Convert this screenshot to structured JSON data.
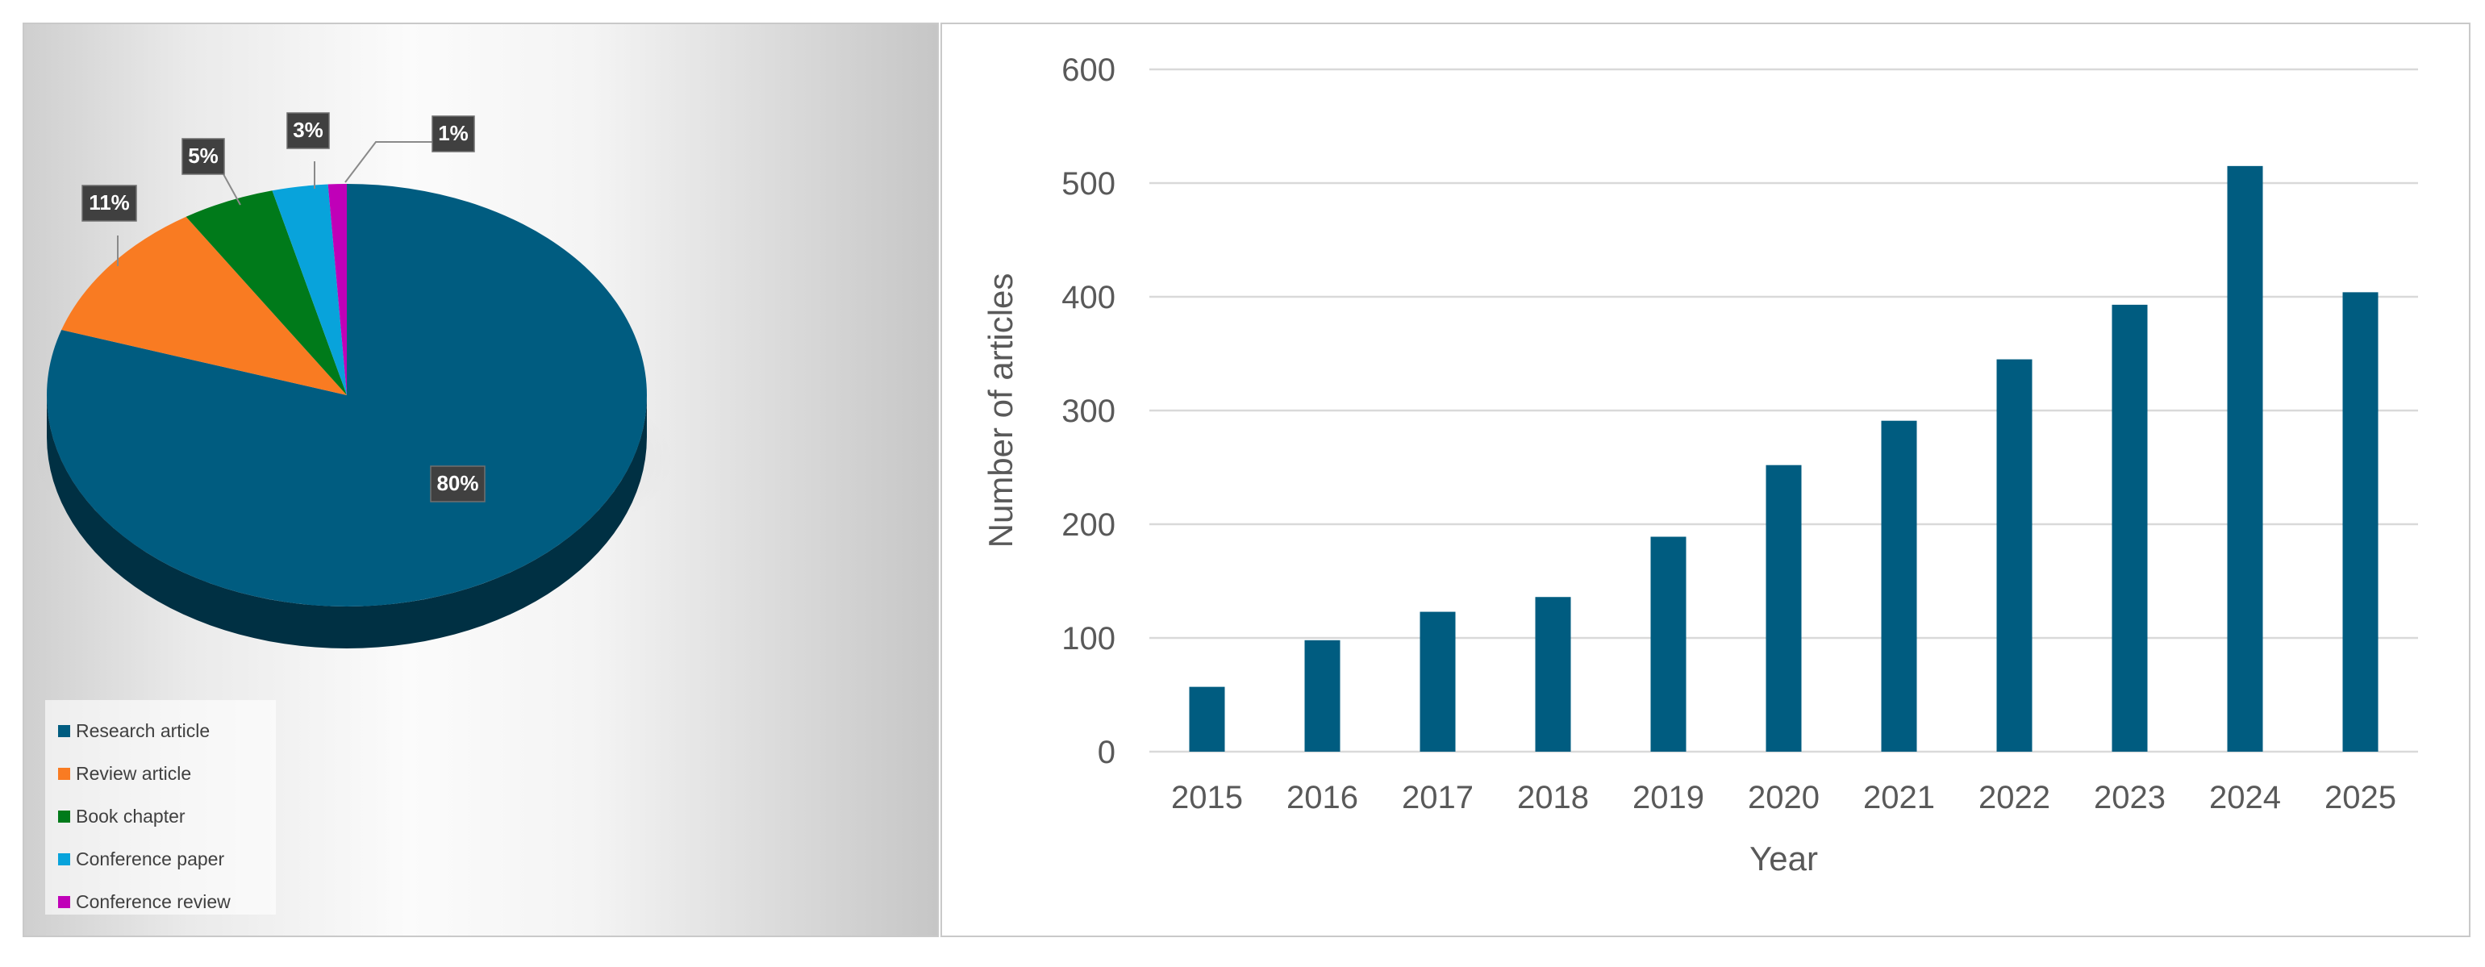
{
  "chart_data": [
    {
      "type": "pie",
      "slices": [
        {
          "label": "Research article",
          "value": 80,
          "display": "80%",
          "color": "#005C80"
        },
        {
          "label": "Review article",
          "value": 11,
          "display": "11%",
          "color": "#F97B22"
        },
        {
          "label": "Book chapter",
          "value": 5,
          "display": "5%",
          "color": "#007A1A"
        },
        {
          "label": "Conference paper",
          "value": 3,
          "display": "3%",
          "color": "#08A3DB"
        },
        {
          "label": "Conference review",
          "value": 1,
          "display": "1%",
          "color": "#C000B8"
        }
      ],
      "legend_position": "bottom-left",
      "label_style": "dark callout labels with leader lines"
    },
    {
      "type": "bar",
      "categories": [
        "2015",
        "2016",
        "2017",
        "2018",
        "2019",
        "2020",
        "2021",
        "2022",
        "2023",
        "2024",
        "2025"
      ],
      "series": [
        {
          "values": [
            57,
            98,
            123,
            136,
            189,
            252,
            291,
            345,
            393,
            515,
            404
          ],
          "color": "#005C80"
        }
      ],
      "xlabel": "Year",
      "ylabel": "Number of articles",
      "ylim": [
        0,
        600
      ],
      "yticks": [
        0,
        100,
        200,
        300,
        400,
        500,
        600
      ],
      "grid": true
    }
  ]
}
